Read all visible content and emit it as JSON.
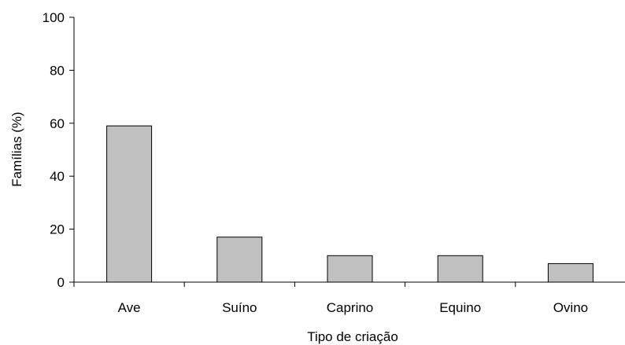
{
  "chart_data": {
    "type": "bar",
    "categories": [
      "Ave",
      "Suíno",
      "Caprino",
      "Equino",
      "Ovino"
    ],
    "values": [
      59,
      17,
      10,
      10,
      7
    ],
    "xlabel": "Tipo de criação",
    "ylabel": "Famílias (%)",
    "ylim": [
      0,
      100
    ],
    "yticks": [
      0,
      20,
      40,
      60,
      80,
      100
    ],
    "grid": false,
    "legend": "none",
    "bar_color": "#c0c0c0",
    "bar_stroke": "#000000"
  }
}
